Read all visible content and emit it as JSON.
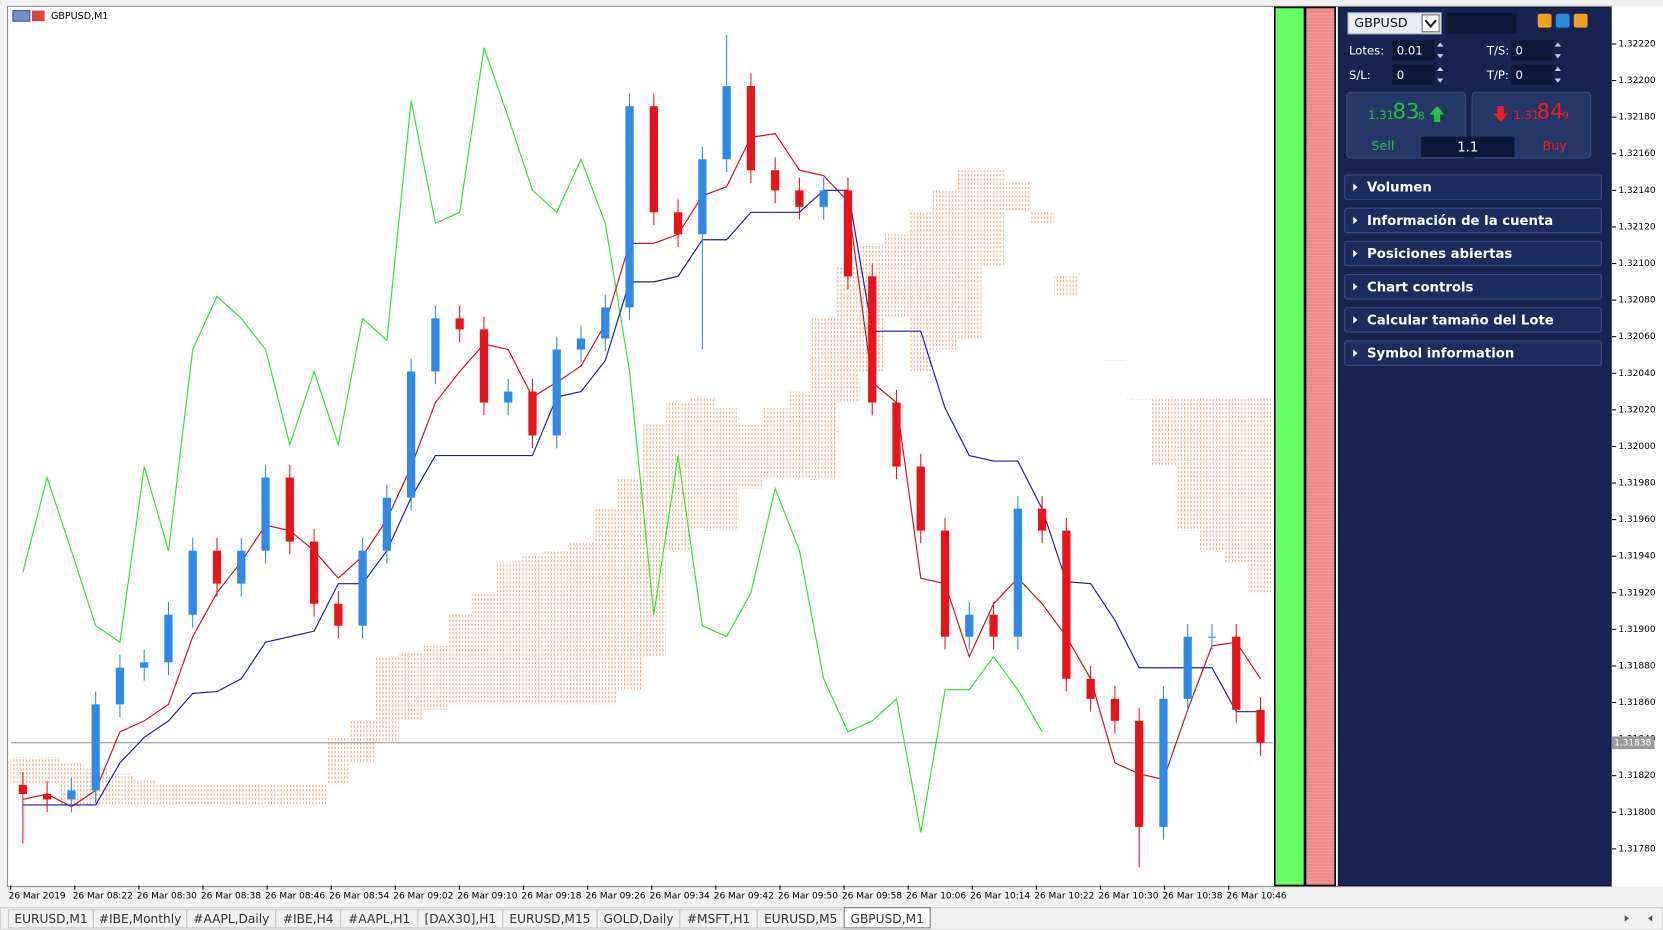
{
  "window": {
    "title": "GBPUSD,M1"
  },
  "panel": {
    "symbol": "GBPUSD",
    "lots_label": "Lotes:",
    "lots": "0.01",
    "ts_label": "T/S:",
    "ts": "0",
    "sl_label": "S/L:",
    "sl": "0",
    "tp_label": "T/P:",
    "tp": "0",
    "sell": {
      "prefix": "1.31",
      "big": "83",
      "suffix": "8",
      "label": "Sell"
    },
    "buy": {
      "prefix": "1.31",
      "big": "84",
      "suffix": "9",
      "label": "Buy"
    },
    "volume": "1.1",
    "sections": [
      "Volumen",
      "Información de la cuenta",
      "Posiciones abiertas",
      "Chart controls",
      "Calcular tamaño del Lote",
      "Symbol information"
    ]
  },
  "tabs": [
    "EURUSD,M1",
    "#IBE,Monthly",
    "#AAPL,Daily",
    "#IBE,H4",
    "#AAPL,H1",
    "[DAX30],H1",
    "EURUSD,M15",
    "GOLD,Daily",
    "#MSFT,H1",
    "EURUSD,M5",
    "GBPUSD,M1"
  ],
  "active_tab": "GBPUSD,M1",
  "chart_data": {
    "type": "candlestick",
    "up_color": "#2e8ae6",
    "down_color": "#e8131b",
    "ylim": [
      1.3176,
      1.3224
    ],
    "yticks": [
      {
        "value": 1.3178,
        "label": "1.31780"
      },
      {
        "value": 1.318,
        "label": "1.31800"
      },
      {
        "value": 1.3182,
        "label": "1.31820"
      },
      {
        "value": 1.3184,
        "label": "1.31840"
      },
      {
        "value": 1.3186,
        "label": "1.31860"
      },
      {
        "value": 1.3188,
        "label": "1.31880"
      },
      {
        "value": 1.319,
        "label": "1.31900"
      },
      {
        "value": 1.3192,
        "label": "1.31920"
      },
      {
        "value": 1.3194,
        "label": "1.31940"
      },
      {
        "value": 1.3196,
        "label": "1.31960"
      },
      {
        "value": 1.3198,
        "label": "1.31980"
      },
      {
        "value": 1.32,
        "label": "1.32000"
      },
      {
        "value": 1.3202,
        "label": "1.32020"
      },
      {
        "value": 1.3204,
        "label": "1.32040"
      },
      {
        "value": 1.3206,
        "label": "1.32060"
      },
      {
        "value": 1.3208,
        "label": "1.32080"
      },
      {
        "value": 1.321,
        "label": "1.32100"
      },
      {
        "value": 1.3212,
        "label": "1.32120"
      },
      {
        "value": 1.3214,
        "label": "1.32140"
      },
      {
        "value": 1.3216,
        "label": "1.32160"
      },
      {
        "value": 1.3218,
        "label": "1.32180"
      },
      {
        "value": 1.322,
        "label": "1.32200"
      },
      {
        "value": 1.3222,
        "label": "1.32220"
      }
    ],
    "xlabels": [
      "26 Mar 2019",
      "26 Mar 08:22",
      "26 Mar 08:30",
      "26 Mar 08:38",
      "26 Mar 08:46",
      "26 Mar 08:54",
      "26 Mar 09:02",
      "26 Mar 09:10",
      "26 Mar 09:18",
      "26 Mar 09:26",
      "26 Mar 09:34",
      "26 Mar 09:42",
      "26 Mar 09:50",
      "26 Mar 09:58",
      "26 Mar 10:06",
      "26 Mar 10:14",
      "26 Mar 10:22",
      "26 Mar 10:30",
      "26 Mar 10:38",
      "26 Mar 10:46"
    ],
    "last_price": {
      "value": 1.31838,
      "label": "1.31838"
    },
    "open": [
      1.31815,
      1.3181,
      1.31807,
      1.31812,
      1.31859,
      1.31879,
      1.31882,
      1.31908,
      1.31943,
      1.31925,
      1.31943,
      1.31983,
      1.31948,
      1.31914,
      1.31902,
      1.31943,
      1.31972,
      1.32041,
      1.3207,
      1.32064,
      1.32024,
      1.3203,
      1.32006,
      1.32053,
      1.32059,
      1.32076,
      1.32186,
      1.32128,
      1.32116,
      1.32157,
      1.32197,
      1.32151,
      1.3214,
      1.32131,
      1.3214,
      1.32093,
      1.32024,
      1.31989,
      1.31954,
      1.31896,
      1.31908,
      1.31896,
      1.31966,
      1.31954,
      1.31873,
      1.31862,
      1.3185,
      1.31792,
      1.31862,
      1.31896,
      1.31896,
      1.31856
    ],
    "high": [
      1.31822,
      1.31817,
      1.31819,
      1.31866,
      1.31886,
      1.31889,
      1.31915,
      1.3195,
      1.3195,
      1.3195,
      1.3199,
      1.3199,
      1.31955,
      1.31921,
      1.3195,
      1.31979,
      1.32048,
      1.32077,
      1.32077,
      1.32071,
      1.32037,
      1.32037,
      1.3206,
      1.32066,
      1.32083,
      1.32193,
      1.32193,
      1.32135,
      1.32164,
      1.32225,
      1.32204,
      1.32158,
      1.32147,
      1.32147,
      1.32147,
      1.321,
      1.32031,
      1.31996,
      1.31961,
      1.31915,
      1.31915,
      1.31973,
      1.31973,
      1.31961,
      1.3188,
      1.31869,
      1.31857,
      1.31869,
      1.31903,
      1.31903,
      1.31903,
      1.31863
    ],
    "low": [
      1.31783,
      1.318,
      1.318,
      1.31805,
      1.31852,
      1.31872,
      1.31875,
      1.31901,
      1.31918,
      1.31918,
      1.31936,
      1.31941,
      1.31907,
      1.31895,
      1.31895,
      1.31936,
      1.31965,
      1.32034,
      1.32057,
      1.32017,
      1.32017,
      1.31999,
      1.31999,
      1.32046,
      1.32052,
      1.32069,
      1.32121,
      1.32109,
      1.32053,
      1.3215,
      1.32144,
      1.32133,
      1.32124,
      1.32124,
      1.32086,
      1.32017,
      1.31982,
      1.31947,
      1.31889,
      1.31889,
      1.31889,
      1.31889,
      1.31947,
      1.31866,
      1.31855,
      1.31843,
      1.3177,
      1.31785,
      1.31855,
      1.31889,
      1.31849,
      1.31831
    ],
    "close": [
      1.3181,
      1.31807,
      1.31812,
      1.31859,
      1.31879,
      1.31882,
      1.31908,
      1.31943,
      1.31925,
      1.31943,
      1.31983,
      1.31948,
      1.31914,
      1.31902,
      1.31943,
      1.31972,
      1.32041,
      1.3207,
      1.32064,
      1.32024,
      1.3203,
      1.32006,
      1.32053,
      1.32059,
      1.32076,
      1.32186,
      1.32128,
      1.32116,
      1.32157,
      1.32197,
      1.32151,
      1.3214,
      1.32131,
      1.3214,
      1.32093,
      1.32024,
      1.31989,
      1.31954,
      1.31896,
      1.31908,
      1.31896,
      1.31966,
      1.31954,
      1.31873,
      1.31862,
      1.3185,
      1.31792,
      1.31862,
      1.31896,
      1.31896,
      1.31856,
      1.31838
    ],
    "cloud_color": "#e39a6a",
    "span_a": [
      1.3183,
      1.3183,
      1.31827,
      1.31824,
      1.31821,
      1.31818,
      1.31815,
      1.31815,
      1.31815,
      1.31815,
      1.31815,
      1.31815,
      1.31815,
      1.31841,
      1.3185,
      1.31885,
      1.31888,
      1.31891,
      1.31908,
      1.3192,
      1.31937,
      1.3194,
      1.31943,
      1.31948,
      1.31966,
      1.31983,
      1.32012,
      1.32024,
      1.32027,
      1.32021,
      1.32012,
      1.32021,
      1.3203,
      1.3207,
      1.32099,
      1.32111,
      1.32116,
      1.32128,
      1.3214,
      1.32151,
      1.32151,
      1.32145,
      1.32122,
      1.32082,
      1.32064,
      1.32047,
      1.32026,
      1.32026,
      1.32026,
      1.32026,
      1.32026,
      1.32026
    ],
    "span_b": [
      1.31815,
      1.31815,
      1.31804,
      1.31804,
      1.31804,
      1.31804,
      1.31804,
      1.31804,
      1.31804,
      1.31804,
      1.31804,
      1.31804,
      1.31804,
      1.31815,
      1.31827,
      1.31838,
      1.3185,
      1.31856,
      1.31859,
      1.31859,
      1.31859,
      1.31859,
      1.31859,
      1.31859,
      1.31859,
      1.31867,
      1.31885,
      1.31943,
      1.31954,
      1.31954,
      1.31977,
      1.31983,
      1.31983,
      1.31983,
      1.32024,
      1.32041,
      1.3207,
      1.32041,
      1.32053,
      1.32059,
      1.32099,
      1.32128,
      1.32128,
      1.32093,
      1.32064,
      1.32047,
      1.32026,
      1.31989,
      1.31954,
      1.31943,
      1.31937,
      1.3192
    ],
    "lines": [
      {
        "color": "#33e033",
        "values": [
          1.31931,
          1.31983,
          1.31943,
          1.31902,
          1.31893,
          1.31989,
          1.31943,
          1.32053,
          1.32082,
          1.3207,
          1.32053,
          1.32001,
          1.32041,
          1.32001,
          1.3207,
          1.32058,
          1.32189,
          1.32122,
          1.32128,
          1.32218,
          1.3218,
          1.3214,
          1.32128,
          1.32157,
          1.32122,
          1.32041,
          1.31908,
          1.31995,
          1.31902,
          1.31896,
          1.3192,
          1.31977,
          1.31943,
          1.31873,
          1.31844,
          1.3185,
          1.31862,
          1.31789,
          1.31867,
          1.31867,
          1.31885,
          1.31867,
          1.31844,
          null,
          null,
          null,
          null,
          null,
          null,
          null,
          null,
          null
        ]
      },
      {
        "color": "#c8141c",
        "values": [
          1.31807,
          1.3181,
          1.31803,
          1.31812,
          1.31844,
          1.3185,
          1.31859,
          1.31896,
          1.3192,
          1.31937,
          1.31957,
          1.31954,
          1.31943,
          1.31928,
          1.3194,
          1.3196,
          1.31989,
          1.32024,
          1.32041,
          1.32056,
          1.32053,
          1.32027,
          1.32035,
          1.32044,
          1.32067,
          1.32111,
          1.32111,
          1.32116,
          1.32137,
          1.32142,
          1.32169,
          1.32171,
          1.32151,
          1.32148,
          1.32134,
          1.32035,
          1.32024,
          1.31928,
          1.31925,
          1.31885,
          1.31914,
          1.31928,
          1.31914,
          1.31896,
          1.31873,
          1.31827,
          1.31821,
          1.31818,
          1.31856,
          1.31891,
          1.31893,
          1.31873
        ]
      },
      {
        "color": "#1c1ca0",
        "values": [
          1.31804,
          1.31804,
          1.31804,
          1.31804,
          1.31827,
          1.31841,
          1.3185,
          1.31865,
          1.31866,
          1.31873,
          1.31893,
          1.31896,
          1.31899,
          1.31925,
          1.31925,
          1.31943,
          1.31972,
          1.31995,
          1.31995,
          1.31995,
          1.31995,
          1.31995,
          1.32027,
          1.3203,
          1.32047,
          1.3209,
          1.3209,
          1.32093,
          1.32113,
          1.32113,
          1.32128,
          1.32128,
          1.32128,
          1.3214,
          1.3214,
          1.32063,
          1.32063,
          1.32063,
          1.32021,
          1.31995,
          1.31992,
          1.31992,
          1.31966,
          1.31926,
          1.31925,
          1.31905,
          1.31879,
          1.31879,
          1.31879,
          1.31879,
          1.31855,
          1.31855
        ]
      }
    ]
  }
}
